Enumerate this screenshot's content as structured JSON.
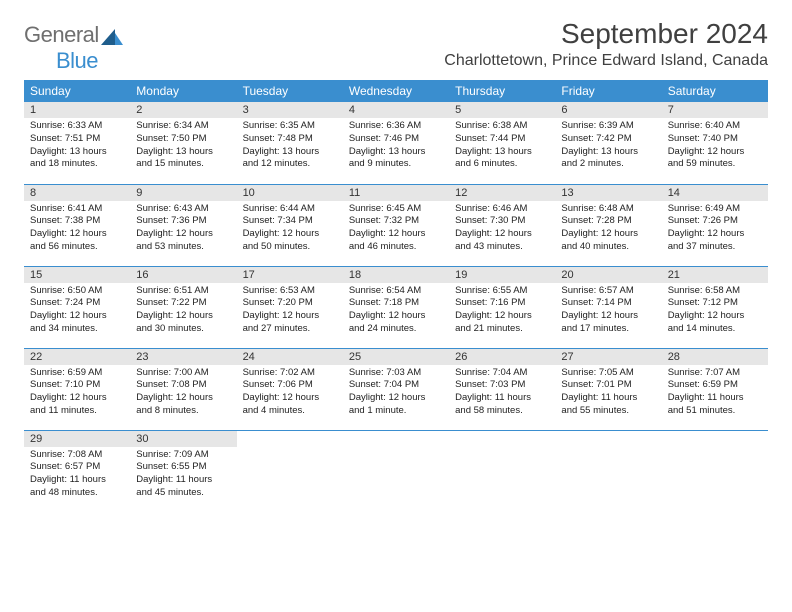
{
  "logo": {
    "name_part1": "General",
    "name_part2": "Blue"
  },
  "title": "September 2024",
  "location": "Charlottetown, Prince Edward Island, Canada",
  "colors": {
    "header_bg": "#3a8ecf",
    "header_text": "#ffffff",
    "daynum_bg": "#e6e6e6",
    "border": "#3a8ecf",
    "logo_gray": "#6f6f6f",
    "logo_blue": "#3a8ecf",
    "page_bg": "#ffffff"
  },
  "weekdays": [
    "Sunday",
    "Monday",
    "Tuesday",
    "Wednesday",
    "Thursday",
    "Friday",
    "Saturday"
  ],
  "days": [
    {
      "n": "1",
      "sunrise": "6:33 AM",
      "sunset": "7:51 PM",
      "daylight": "13 hours and 18 minutes."
    },
    {
      "n": "2",
      "sunrise": "6:34 AM",
      "sunset": "7:50 PM",
      "daylight": "13 hours and 15 minutes."
    },
    {
      "n": "3",
      "sunrise": "6:35 AM",
      "sunset": "7:48 PM",
      "daylight": "13 hours and 12 minutes."
    },
    {
      "n": "4",
      "sunrise": "6:36 AM",
      "sunset": "7:46 PM",
      "daylight": "13 hours and 9 minutes."
    },
    {
      "n": "5",
      "sunrise": "6:38 AM",
      "sunset": "7:44 PM",
      "daylight": "13 hours and 6 minutes."
    },
    {
      "n": "6",
      "sunrise": "6:39 AM",
      "sunset": "7:42 PM",
      "daylight": "13 hours and 2 minutes."
    },
    {
      "n": "7",
      "sunrise": "6:40 AM",
      "sunset": "7:40 PM",
      "daylight": "12 hours and 59 minutes."
    },
    {
      "n": "8",
      "sunrise": "6:41 AM",
      "sunset": "7:38 PM",
      "daylight": "12 hours and 56 minutes."
    },
    {
      "n": "9",
      "sunrise": "6:43 AM",
      "sunset": "7:36 PM",
      "daylight": "12 hours and 53 minutes."
    },
    {
      "n": "10",
      "sunrise": "6:44 AM",
      "sunset": "7:34 PM",
      "daylight": "12 hours and 50 minutes."
    },
    {
      "n": "11",
      "sunrise": "6:45 AM",
      "sunset": "7:32 PM",
      "daylight": "12 hours and 46 minutes."
    },
    {
      "n": "12",
      "sunrise": "6:46 AM",
      "sunset": "7:30 PM",
      "daylight": "12 hours and 43 minutes."
    },
    {
      "n": "13",
      "sunrise": "6:48 AM",
      "sunset": "7:28 PM",
      "daylight": "12 hours and 40 minutes."
    },
    {
      "n": "14",
      "sunrise": "6:49 AM",
      "sunset": "7:26 PM",
      "daylight": "12 hours and 37 minutes."
    },
    {
      "n": "15",
      "sunrise": "6:50 AM",
      "sunset": "7:24 PM",
      "daylight": "12 hours and 34 minutes."
    },
    {
      "n": "16",
      "sunrise": "6:51 AM",
      "sunset": "7:22 PM",
      "daylight": "12 hours and 30 minutes."
    },
    {
      "n": "17",
      "sunrise": "6:53 AM",
      "sunset": "7:20 PM",
      "daylight": "12 hours and 27 minutes."
    },
    {
      "n": "18",
      "sunrise": "6:54 AM",
      "sunset": "7:18 PM",
      "daylight": "12 hours and 24 minutes."
    },
    {
      "n": "19",
      "sunrise": "6:55 AM",
      "sunset": "7:16 PM",
      "daylight": "12 hours and 21 minutes."
    },
    {
      "n": "20",
      "sunrise": "6:57 AM",
      "sunset": "7:14 PM",
      "daylight": "12 hours and 17 minutes."
    },
    {
      "n": "21",
      "sunrise": "6:58 AM",
      "sunset": "7:12 PM",
      "daylight": "12 hours and 14 minutes."
    },
    {
      "n": "22",
      "sunrise": "6:59 AM",
      "sunset": "7:10 PM",
      "daylight": "12 hours and 11 minutes."
    },
    {
      "n": "23",
      "sunrise": "7:00 AM",
      "sunset": "7:08 PM",
      "daylight": "12 hours and 8 minutes."
    },
    {
      "n": "24",
      "sunrise": "7:02 AM",
      "sunset": "7:06 PM",
      "daylight": "12 hours and 4 minutes."
    },
    {
      "n": "25",
      "sunrise": "7:03 AM",
      "sunset": "7:04 PM",
      "daylight": "12 hours and 1 minute."
    },
    {
      "n": "26",
      "sunrise": "7:04 AM",
      "sunset": "7:03 PM",
      "daylight": "11 hours and 58 minutes."
    },
    {
      "n": "27",
      "sunrise": "7:05 AM",
      "sunset": "7:01 PM",
      "daylight": "11 hours and 55 minutes."
    },
    {
      "n": "28",
      "sunrise": "7:07 AM",
      "sunset": "6:59 PM",
      "daylight": "11 hours and 51 minutes."
    },
    {
      "n": "29",
      "sunrise": "7:08 AM",
      "sunset": "6:57 PM",
      "daylight": "11 hours and 48 minutes."
    },
    {
      "n": "30",
      "sunrise": "7:09 AM",
      "sunset": "6:55 PM",
      "daylight": "11 hours and 45 minutes."
    }
  ],
  "labels": {
    "sunrise": "Sunrise:",
    "sunset": "Sunset:",
    "daylight": "Daylight:"
  },
  "layout": {
    "columns": 7,
    "first_weekday_index": 0,
    "rows": 5
  }
}
